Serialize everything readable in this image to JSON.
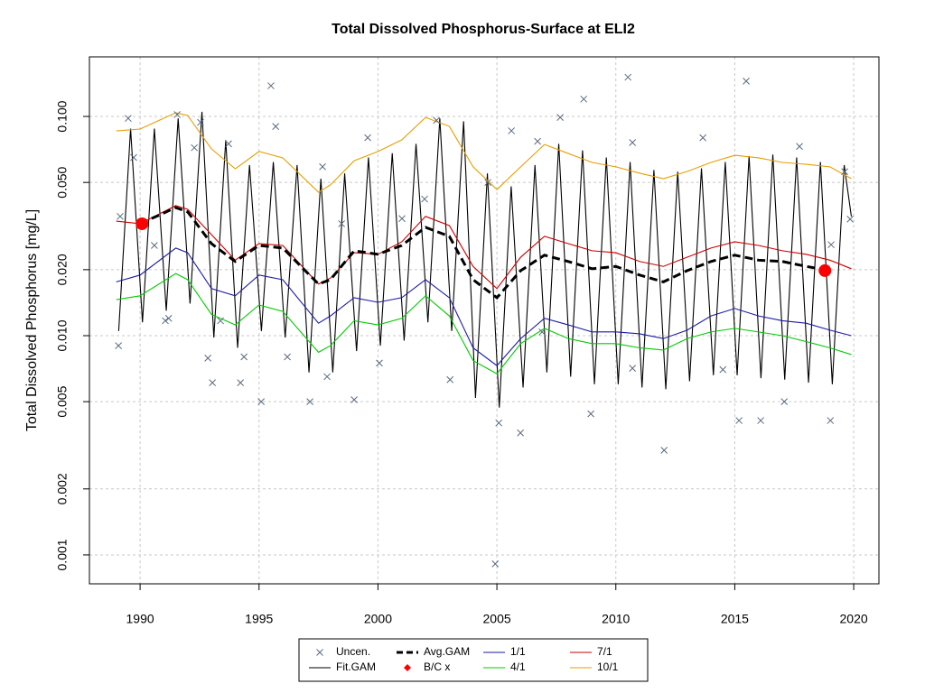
{
  "chart_data": {
    "type": "line",
    "title": "Total Dissolved Phosphorus-Surface at ELI2",
    "y_label": "Total Dissolved Phosphorus [mg/L]",
    "y_log": true,
    "grid": true,
    "legend": "bottom",
    "xlim": [
      1987.87,
      2021.06
    ],
    "xticks": [
      1990,
      1995,
      2000,
      2005,
      2010,
      2015,
      2020
    ],
    "ylim": [
      0.000738,
      0.187
    ],
    "yticks": [
      0.001,
      0.002,
      0.005,
      {
        "value": 0.01,
        "label": "0.010"
      },
      {
        "value": 0.02,
        "label": "0.020"
      },
      {
        "value": 0.05,
        "label": "0.050"
      },
      {
        "value": 0.1,
        "label": "0.100"
      }
    ],
    "series": [
      {
        "name": "Uncen.",
        "color": "#5a6a80",
        "mark": "cross",
        "x": [
          1989.09,
          1989.16,
          1989.5,
          1989.73,
          1990.6,
          1991.06,
          1991.2,
          1991.56,
          1992.28,
          1992.54,
          1993.04,
          1993.38,
          1993.72,
          1994.22,
          1994.37,
          1995.09,
          1995.5,
          1995.7,
          1996.19,
          1997.14,
          1997.67,
          1997.86,
          1998.47,
          1999.0,
          1999.57,
          2000.06,
          2001.01,
          2001.96,
          2002.46,
          2003.03,
          2004.62,
          2004.93,
          2005.08,
          2005.61,
          2005.99,
          2006.71,
          2007.66,
          2008.65,
          2008.95,
          2010.51,
          2010.7,
          2012.03,
          2013.66,
          2015.48,
          2015.18,
          2016.09,
          2017.08,
          2017.72,
          2019.02,
          2019.62,
          2019.85,
          1992.85,
          2006.9,
          2010.7,
          2014.5,
          2019.05
        ],
        "values": [
          0.009,
          0.035,
          0.098,
          0.065,
          0.0258,
          0.0117,
          0.012,
          0.102,
          0.072,
          0.094,
          0.0061,
          0.0117,
          0.075,
          0.0061,
          0.008,
          0.005,
          0.138,
          0.09,
          0.008,
          0.005,
          0.059,
          0.0065,
          0.0324,
          0.0051,
          0.08,
          0.0075,
          0.0342,
          0.042,
          0.096,
          0.0063,
          0.05,
          0.00091,
          0.004,
          0.086,
          0.0036,
          0.077,
          0.099,
          0.12,
          0.0044,
          0.151,
          0.076,
          0.003,
          0.08,
          0.145,
          0.0041,
          0.0041,
          0.005,
          0.073,
          0.0041,
          0.056,
          0.034,
          0.0079,
          0.0104,
          0.0071,
          0.007,
          0.026
        ]
      },
      {
        "name": "Fit.GAM",
        "color": "#000000",
        "mark": "line",
        "x": [
          1989.1,
          1989.6,
          1990.1,
          1990.6,
          1991.1,
          1991.6,
          1992.1,
          1992.6,
          1993.1,
          1993.6,
          1994.1,
          1994.6,
          1995.1,
          1995.6,
          1996.1,
          1996.6,
          1997.1,
          1997.6,
          1998.1,
          1998.6,
          1999.1,
          1999.6,
          2000.1,
          2000.6,
          2001.1,
          2001.6,
          2002.1,
          2002.6,
          2003.1,
          2003.6,
          2004.1,
          2004.6,
          2005.1,
          2005.6,
          2006.1,
          2006.6,
          2007.1,
          2007.6,
          2008.1,
          2008.6,
          2009.1,
          2009.6,
          2010.1,
          2010.6,
          2011.1,
          2011.6,
          2012.1,
          2012.6,
          2013.1,
          2013.6,
          2014.1,
          2014.6,
          2015.1,
          2015.6,
          2016.1,
          2016.6,
          2017.1,
          2017.6,
          2018.1,
          2018.6,
          2019.1,
          2019.6,
          2019.9
        ],
        "values": [
          0.0105,
          0.088,
          0.0115,
          0.088,
          0.013,
          0.098,
          0.014,
          0.105,
          0.0098,
          0.078,
          0.0088,
          0.06,
          0.0105,
          0.062,
          0.0098,
          0.06,
          0.0068,
          0.052,
          0.0068,
          0.055,
          0.0085,
          0.065,
          0.009,
          0.068,
          0.0095,
          0.075,
          0.0115,
          0.098,
          0.0105,
          0.095,
          0.0052,
          0.055,
          0.0047,
          0.048,
          0.0058,
          0.06,
          0.0068,
          0.075,
          0.0065,
          0.07,
          0.006,
          0.065,
          0.006,
          0.062,
          0.0058,
          0.057,
          0.0057,
          0.056,
          0.0062,
          0.058,
          0.0066,
          0.062,
          0.0066,
          0.066,
          0.0064,
          0.067,
          0.0063,
          0.065,
          0.0061,
          0.062,
          0.006,
          0.06,
          0.035
        ]
      },
      {
        "name": "Avg.GAM",
        "color": "#000000",
        "mark": "dashed",
        "x": [
          1989,
          1990,
          1991.5,
          1992,
          1993,
          1994,
          1995,
          1996,
          1997.5,
          1998,
          1999,
          2000,
          2001,
          2002,
          2003,
          2004,
          2005,
          2006,
          2007,
          2008,
          2009,
          2010,
          2011,
          2012,
          2013,
          2014,
          2015,
          2016,
          2017,
          2018,
          2019,
          2019.9
        ],
        "values": [
          null,
          0.0324,
          0.0384,
          0.0367,
          0.0263,
          0.0218,
          0.0258,
          0.0251,
          0.0172,
          0.018,
          0.0244,
          0.0235,
          0.0258,
          0.0312,
          0.0284,
          0.018,
          0.0149,
          0.0198,
          0.0233,
          0.0218,
          0.0202,
          0.0207,
          0.0189,
          0.0176,
          0.0198,
          0.0218,
          0.0233,
          0.0221,
          0.0218,
          0.0207,
          0.0198,
          null
        ]
      },
      {
        "name": "B/C x",
        "color": "#ff0000",
        "mark": "dot",
        "x": [
          1990.08,
          2018.79
        ],
        "values": [
          0.0324,
          0.0198
        ]
      },
      {
        "name": "1/1",
        "color": "#1a1aa6",
        "mark": "line",
        "x": [
          1989,
          1990,
          1991.5,
          1992,
          1993,
          1994,
          1995,
          1996,
          1997.5,
          1998,
          1999,
          2000,
          2001,
          2002,
          2003,
          2004,
          2005,
          2006,
          2007,
          2008,
          2009,
          2010,
          2011,
          2012,
          2013,
          2014,
          2015,
          2016,
          2017,
          2018,
          2019,
          2019.9
        ],
        "values": [
          0.0176,
          0.0189,
          0.0251,
          0.0239,
          0.0164,
          0.0152,
          0.0189,
          0.018,
          0.0114,
          0.0123,
          0.0149,
          0.0142,
          0.0149,
          0.018,
          0.0149,
          0.0088,
          0.0073,
          0.0097,
          0.012,
          0.0112,
          0.0104,
          0.0104,
          0.0102,
          0.0097,
          0.0106,
          0.0123,
          0.0133,
          0.0123,
          0.0117,
          0.0114,
          0.0106,
          0.01
        ]
      },
      {
        "name": "4/1",
        "color": "#00cc00",
        "mark": "line",
        "x": [
          1989,
          1990,
          1991.5,
          1992,
          1993,
          1994,
          1995,
          1996,
          1997.5,
          1998,
          1999,
          2000,
          2001,
          2002,
          2003,
          2004,
          2005,
          2006,
          2007,
          2008,
          2009,
          2010,
          2011,
          2012,
          2013,
          2014,
          2015,
          2016,
          2017,
          2018,
          2019,
          2019.9
        ],
        "values": [
          0.0146,
          0.0152,
          0.0192,
          0.018,
          0.0125,
          0.0112,
          0.0138,
          0.0129,
          0.0084,
          0.009,
          0.0117,
          0.0112,
          0.012,
          0.0152,
          0.0123,
          0.0077,
          0.0067,
          0.0092,
          0.0108,
          0.0097,
          0.0092,
          0.0092,
          0.0088,
          0.0086,
          0.0097,
          0.0104,
          0.0108,
          0.0104,
          0.01,
          0.0094,
          0.0088,
          0.0082
        ]
      },
      {
        "name": "7/1",
        "color": "#cc0000",
        "mark": "line",
        "x": [
          1989,
          1990,
          1991.5,
          1992,
          1993,
          1994,
          1995,
          1996,
          1997.5,
          1998,
          1999,
          2000,
          2001,
          2002,
          2003,
          2004,
          2005,
          2006,
          2007,
          2008,
          2009,
          2010,
          2011,
          2012,
          2013,
          2014,
          2015,
          2016,
          2017,
          2018,
          2019,
          2019.9
        ],
        "values": [
          0.0333,
          0.0324,
          0.0392,
          0.0377,
          0.0289,
          0.0221,
          0.0263,
          0.0258,
          0.0172,
          0.0183,
          0.0239,
          0.0235,
          0.0268,
          0.035,
          0.0318,
          0.0207,
          0.0164,
          0.0228,
          0.0284,
          0.0263,
          0.0244,
          0.0239,
          0.0218,
          0.0207,
          0.0228,
          0.0251,
          0.0268,
          0.0258,
          0.0244,
          0.0235,
          0.0221,
          0.0202
        ]
      },
      {
        "name": "10/1",
        "color": "#e69f00",
        "mark": "line",
        "x": [
          1989,
          1990,
          1991.5,
          1992,
          1993,
          1994,
          1995,
          1996,
          1997.5,
          1998,
          1999,
          2000,
          2001,
          2002,
          2003,
          2004,
          2005,
          2006,
          2007,
          2008,
          2009,
          2010,
          2011,
          2012,
          2013,
          2014,
          2015,
          2016,
          2017,
          2018,
          2019,
          2019.9
        ],
        "values": [
          0.0859,
          0.0876,
          0.104,
          0.101,
          0.0711,
          0.0577,
          0.0692,
          0.0647,
          0.0451,
          0.0487,
          0.0628,
          0.0692,
          0.0782,
          0.099,
          0.0901,
          0.0589,
          0.0464,
          0.0589,
          0.0745,
          0.0678,
          0.0617,
          0.0589,
          0.0551,
          0.052,
          0.0561,
          0.0617,
          0.0665,
          0.0647,
          0.0617,
          0.0605,
          0.0589,
          0.052
        ]
      }
    ]
  }
}
